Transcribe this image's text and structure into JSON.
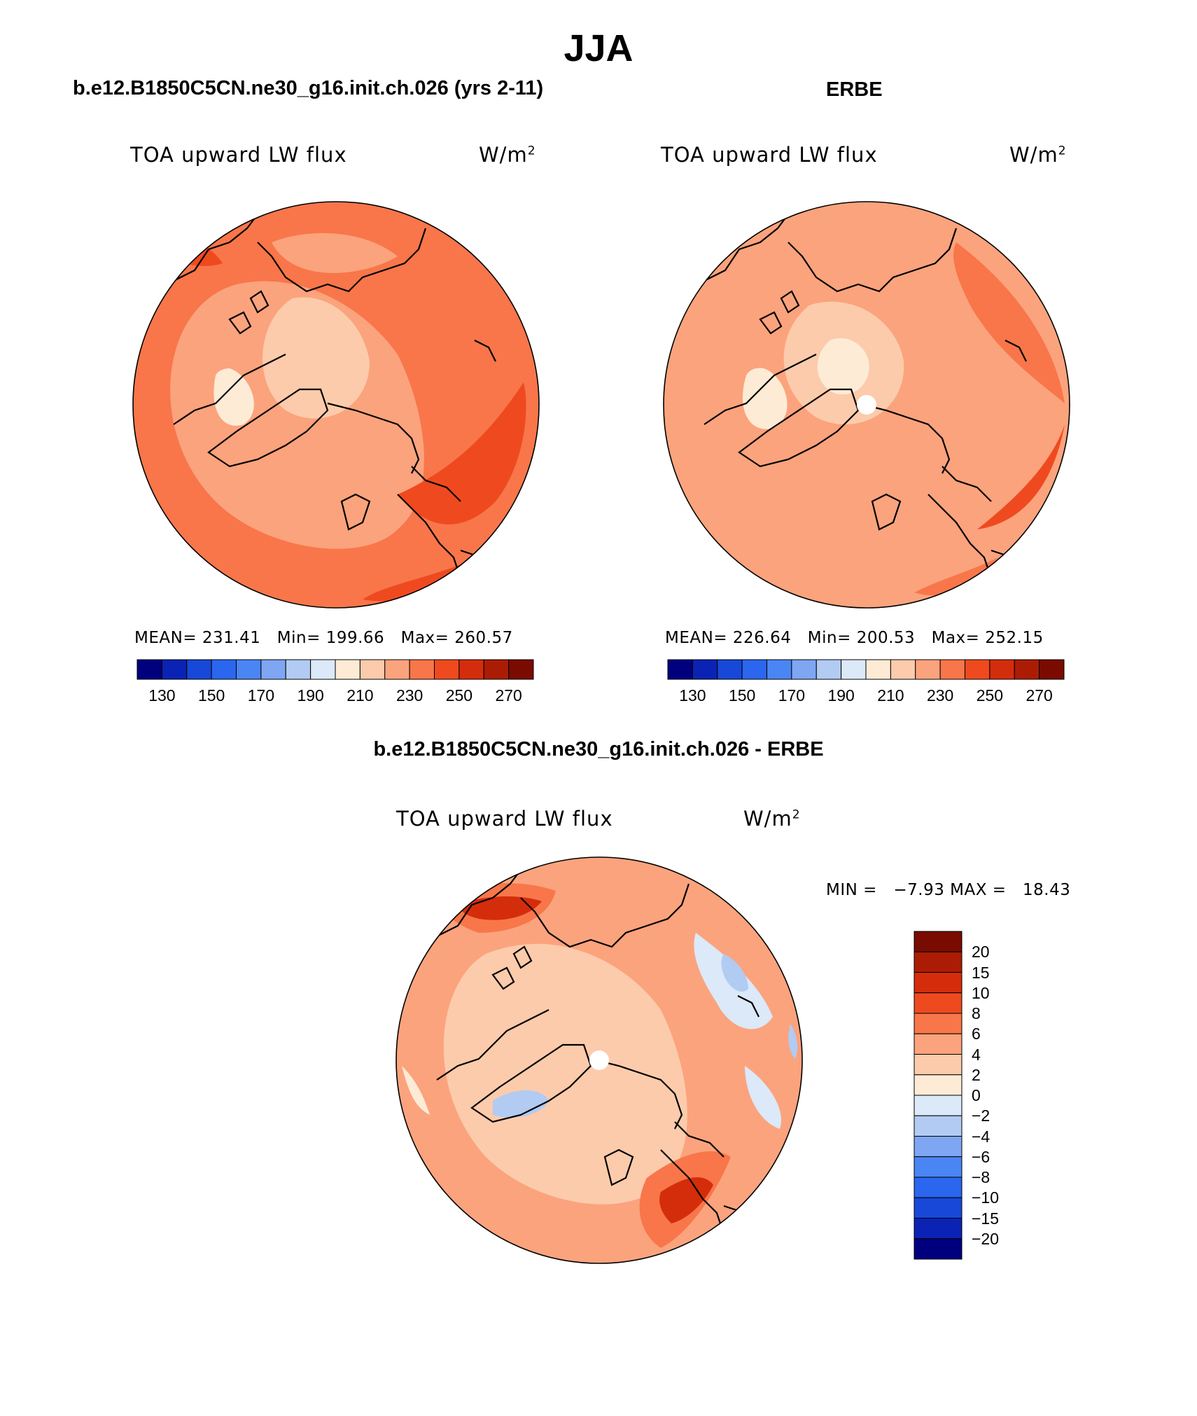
{
  "figure": {
    "title": "JJA",
    "left_title": "b.e12.B1850C5CN.ne30_g16.init.ch.026 (yrs 2-11)",
    "right_title": "ERBE",
    "diff_title": "b.e12.B1850C5CN.ne30_g16.init.ch.026 - ERBE"
  },
  "panels": {
    "model": {
      "variable": "TOA upward LW flux",
      "units_base": "W/m",
      "units_sup": "2",
      "stats_text": "MEAN= 231.41   Min= 199.66   Max= 260.57"
    },
    "obs": {
      "variable": "TOA upward LW flux",
      "units_base": "W/m",
      "units_sup": "2",
      "stats_text": "MEAN= 226.64   Min= 200.53   Max= 252.15"
    },
    "diff": {
      "variable": "TOA upward LW flux",
      "units_base": "W/m",
      "units_sup": "2",
      "stats_text": "MIN =   −7.93 MAX =   18.43"
    }
  },
  "chart_data": [
    {
      "type": "heatmap",
      "title": "TOA upward LW flux",
      "units": "W/m2",
      "projection": "north polar stereographic",
      "mean": 231.41,
      "min": 199.66,
      "max": 260.57,
      "colorbar_ticks": [
        "130",
        "150",
        "170",
        "190",
        "210",
        "230",
        "250",
        "270"
      ],
      "levels": [
        130,
        140,
        150,
        160,
        170,
        180,
        190,
        200,
        210,
        220,
        230,
        240,
        250,
        260,
        270
      ]
    },
    {
      "type": "heatmap",
      "title": "TOA upward LW flux",
      "units": "W/m2",
      "projection": "north polar stereographic",
      "mean": 226.64,
      "min": 200.53,
      "max": 252.15,
      "colorbar_ticks": [
        "130",
        "150",
        "170",
        "190",
        "210",
        "230",
        "250",
        "270"
      ],
      "levels": [
        130,
        140,
        150,
        160,
        170,
        180,
        190,
        200,
        210,
        220,
        230,
        240,
        250,
        260,
        270
      ]
    },
    {
      "type": "heatmap",
      "title": "TOA upward LW flux",
      "units": "W/m2",
      "projection": "north polar stereographic",
      "min": -7.93,
      "max": 18.43,
      "colorbar_ticks": [
        "20",
        "15",
        "10",
        "8",
        "6",
        "4",
        "2",
        "0",
        "−2",
        "−4",
        "−6",
        "−8",
        "−10",
        "−15",
        "−20"
      ]
    }
  ],
  "colors": {
    "abs_scale": [
      "#00007f",
      "#0a23b4",
      "#1848d8",
      "#2a66ee",
      "#4a85f4",
      "#7ea6f2",
      "#b2cbf3",
      "#dbe9f8",
      "#fdebd6",
      "#fccbab",
      "#fba37d",
      "#f8764a",
      "#ef4a1f",
      "#d42d0c",
      "#ac1c05",
      "#7a0b00"
    ],
    "diff_scale": [
      "#7a0b00",
      "#ac1c05",
      "#d42d0c",
      "#ef4a1f",
      "#f8764a",
      "#fba37d",
      "#fccbab",
      "#fdebd6",
      "#dbe9f8",
      "#b2cbf3",
      "#7ea6f2",
      "#4a85f4",
      "#2a66ee",
      "#1848d8",
      "#0a23b4",
      "#00007f"
    ],
    "coast": "#000000",
    "pole": "#ffffff"
  }
}
